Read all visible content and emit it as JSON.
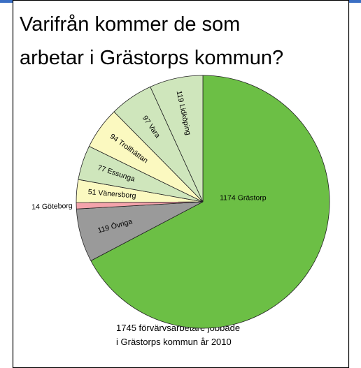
{
  "chart_data": {
    "type": "pie",
    "title": [
      "Varifrån kommer de som",
      "arbetar i Grästorps kommun?"
    ],
    "categories": [
      "Grästorp",
      "Övriga",
      "Göteborg",
      "Vänersborg",
      "Essunga",
      "Trollhättan",
      "Vara",
      "Lidköping"
    ],
    "values": [
      1174,
      119,
      14,
      51,
      77,
      94,
      97,
      119
    ],
    "colors": [
      "#6cbf45",
      "#9a9a9a",
      "#f4a3ab",
      "#fbf9c0",
      "#cfe6bc",
      "#fbf9c0",
      "#cfe6bc",
      "#cfe6bc"
    ],
    "note": [
      "1745 förvärvsarbetare jobbade",
      "i Grästorps kommun år 2010"
    ]
  }
}
